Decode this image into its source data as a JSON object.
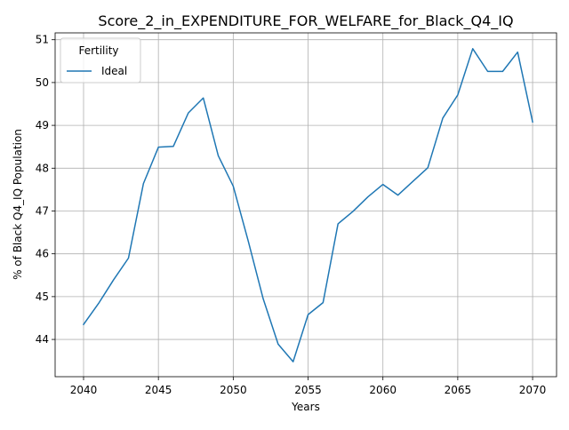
{
  "chart_data": {
    "type": "line",
    "title": "Score_2_in_EXPENDITURE_FOR_WELFARE_for_Black_Q4_IQ",
    "xlabel": "Years",
    "ylabel": "% of Black Q4_IQ Population",
    "xlim": [
      2038.1,
      2071.6
    ],
    "ylim": [
      43.13,
      51.16
    ],
    "x_ticks": [
      2040,
      2045,
      2050,
      2055,
      2060,
      2065,
      2070
    ],
    "y_ticks": [
      44,
      45,
      46,
      47,
      48,
      49,
      50,
      51
    ],
    "grid": true,
    "legend": {
      "title": "Fertility",
      "placement": "top-left"
    },
    "colors": {
      "series": "#1f77b4",
      "grid": "#b0b0b0",
      "axis": "#000000"
    },
    "series": [
      {
        "name": "Ideal",
        "x": [
          2040,
          2041,
          2042,
          2043,
          2044,
          2045,
          2046,
          2047,
          2048,
          2049,
          2050,
          2051,
          2052,
          2053,
          2054,
          2055,
          2056,
          2057,
          2058,
          2059,
          2060,
          2061,
          2062,
          2063,
          2064,
          2065,
          2066,
          2067,
          2068,
          2069,
          2070
        ],
        "values": [
          44.35,
          44.84,
          45.39,
          45.9,
          47.64,
          48.49,
          48.51,
          49.29,
          49.64,
          48.29,
          47.58,
          46.3,
          44.95,
          43.89,
          43.48,
          44.58,
          44.86,
          46.7,
          46.99,
          47.33,
          47.62,
          47.37,
          47.69,
          48.01,
          49.17,
          49.71,
          50.79,
          50.26,
          50.26,
          50.71,
          49.08
        ]
      }
    ]
  }
}
